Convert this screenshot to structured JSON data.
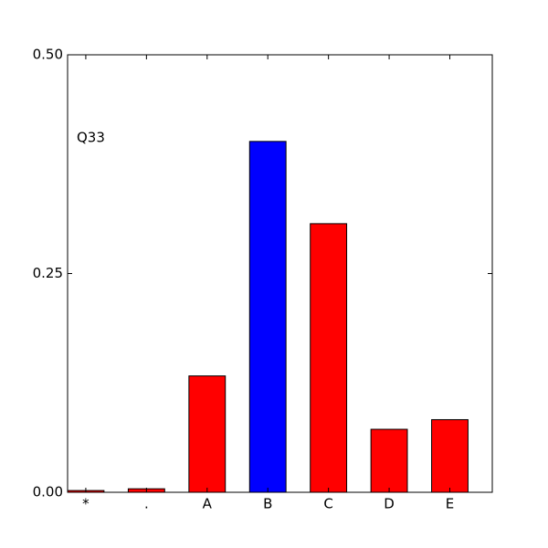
{
  "chart_data": {
    "type": "bar",
    "annotation": "Q33",
    "categories": [
      "*",
      ".",
      "A",
      "B",
      "C",
      "D",
      "E"
    ],
    "values": [
      0.002,
      0.004,
      0.133,
      0.401,
      0.307,
      0.072,
      0.083
    ],
    "colors": [
      "#ff0000",
      "#ff0000",
      "#ff0000",
      "#0000ff",
      "#ff0000",
      "#ff0000",
      "#ff0000"
    ],
    "ylim": [
      0,
      0.5
    ],
    "yticks": [
      {
        "value": 0,
        "label": "0.00"
      },
      {
        "value": 0.25,
        "label": "0.25"
      },
      {
        "value": 0.5,
        "label": "0.50"
      }
    ],
    "grid": false
  }
}
